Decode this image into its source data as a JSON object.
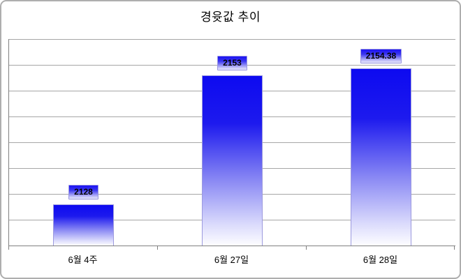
{
  "chart_data": {
    "type": "bar",
    "title": "경윳값 추이",
    "categories": [
      "6월 4주",
      "6월 27일",
      "6월 28일"
    ],
    "values": [
      2128,
      2153,
      2154.38
    ],
    "data_labels": [
      "2128",
      "2153",
      "2154.38"
    ],
    "xlabel": "",
    "ylabel": "",
    "ylim": [
      2120,
      2160
    ],
    "y_major_unit": 5,
    "y_tick_labels_visible": false,
    "grid": true,
    "legend": "none",
    "colors": {
      "bar_gradient_top": "#0d0af0",
      "bar_gradient_bottom": "#ffffff",
      "gridline": "#a6a6a6",
      "axis": "#808080",
      "title_text": "#000000",
      "label_text": "#000000"
    }
  }
}
